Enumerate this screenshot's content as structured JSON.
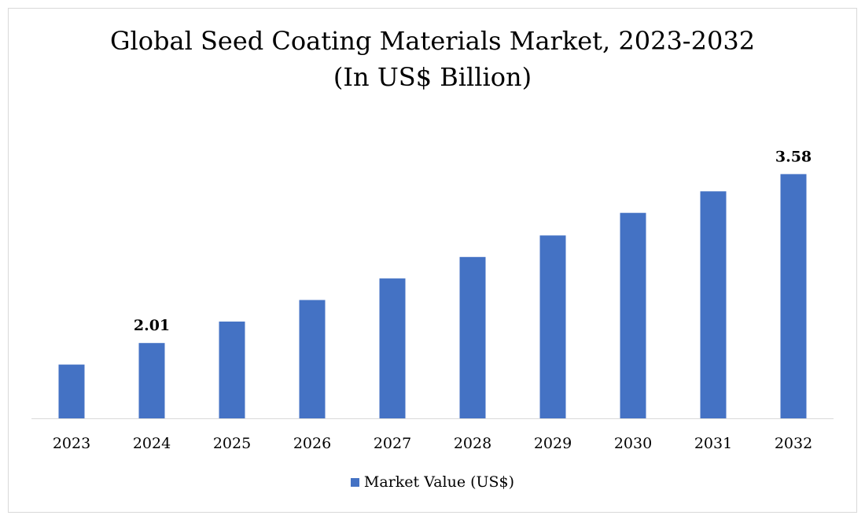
{
  "title_line1": "Global Seed Coating Materials Market, 2023-2032",
  "title_line2": "(In US$ Billion)",
  "chart_data": {
    "type": "bar",
    "title": "Global Seed Coating Materials Market, 2023-2032",
    "subtitle": "(In US$ Billion)",
    "categories": [
      "2023",
      "2024",
      "2025",
      "2026",
      "2027",
      "2028",
      "2029",
      "2030",
      "2031",
      "2032"
    ],
    "series": [
      {
        "name": "Market Value (US$)",
        "values": [
          1.81,
          2.01,
          2.21,
          2.41,
          2.61,
          2.81,
          3.01,
          3.22,
          3.42,
          3.58
        ],
        "color": "#4472c4"
      }
    ],
    "data_labels": [
      null,
      "2.01",
      null,
      null,
      null,
      null,
      null,
      null,
      null,
      "3.58"
    ],
    "ylim": [
      1.31,
      3.7
    ],
    "grid": false,
    "legend_position": "bottom",
    "xlabel": "",
    "ylabel": ""
  },
  "legend": {
    "label": "Market Value (US$)",
    "color": "#4472c4"
  }
}
